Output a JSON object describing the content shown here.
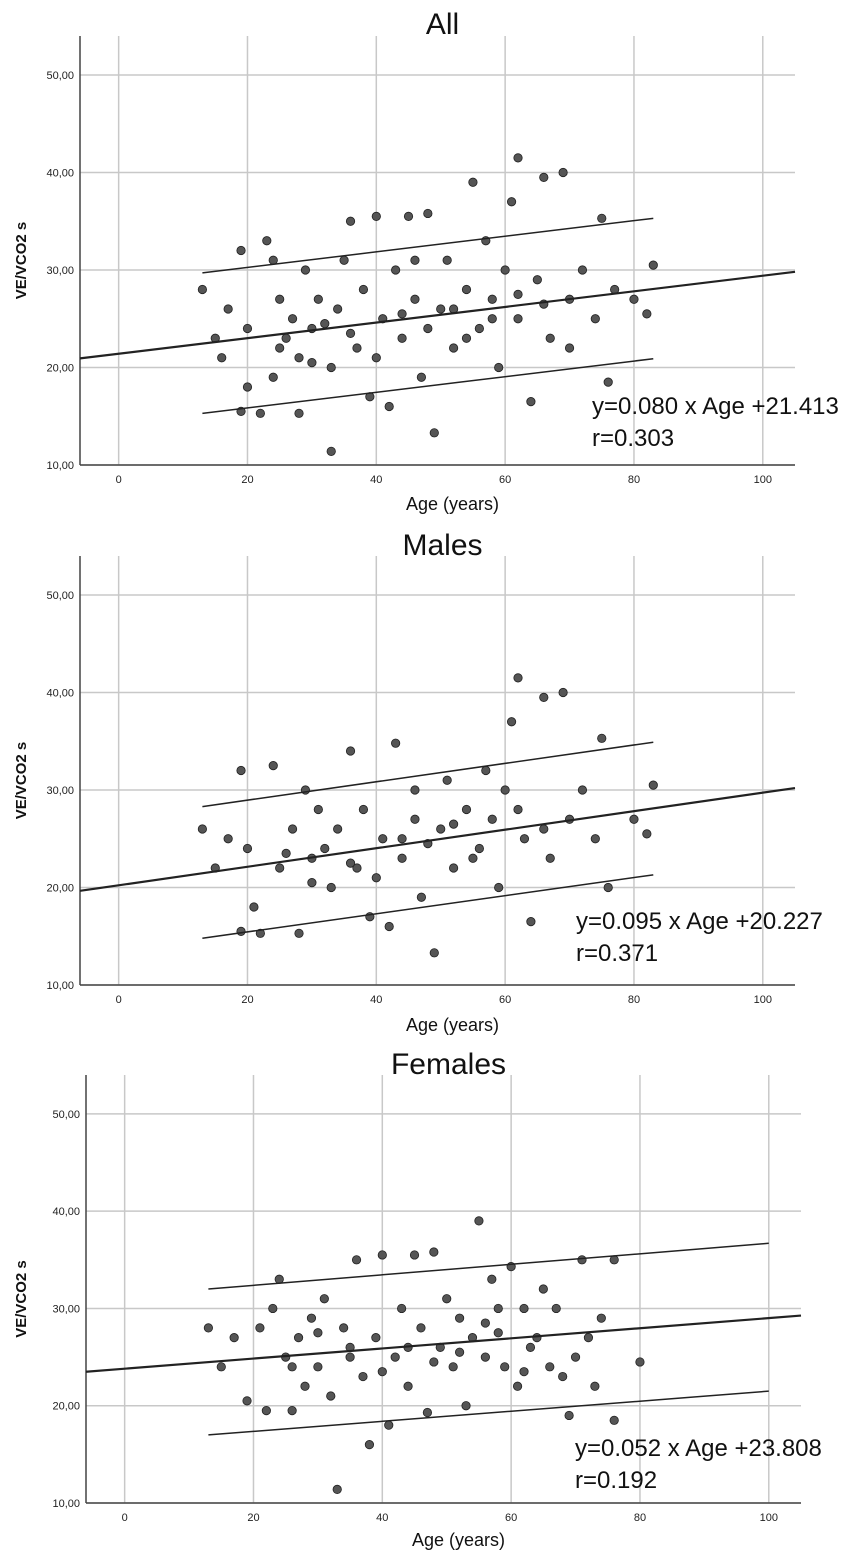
{
  "chart_data": [
    {
      "type": "scatter",
      "title": "All",
      "xlabel": "Age (years)",
      "ylabel": "VE/VCO2 s",
      "xlim": [
        -6,
        105
      ],
      "ylim": [
        10,
        54
      ],
      "xticks": [
        "0",
        "20",
        "40",
        "60",
        "80",
        "100"
      ],
      "yticks": [
        "10,00",
        "20,00",
        "30,00",
        "40,00",
        "50,00"
      ],
      "grid": true,
      "fit": {
        "slope": 0.08,
        "intercept": 21.413,
        "x_range": [
          -6,
          105
        ]
      },
      "prediction_band": {
        "x": [
          13,
          83
        ],
        "upper": [
          29.7,
          35.3
        ],
        "lower": [
          15.3,
          20.9
        ]
      },
      "annotation": [
        "y=0.080 x Age +21.413",
        "r=0.303"
      ],
      "points": [
        [
          13,
          28
        ],
        [
          15,
          23
        ],
        [
          16,
          21
        ],
        [
          17,
          26
        ],
        [
          19,
          32
        ],
        [
          19,
          15.5
        ],
        [
          20,
          24
        ],
        [
          20,
          18
        ],
        [
          22,
          15.3
        ],
        [
          23,
          33
        ],
        [
          24,
          31
        ],
        [
          25,
          22
        ],
        [
          25,
          27
        ],
        [
          27,
          25
        ],
        [
          28,
          15.3
        ],
        [
          28,
          21
        ],
        [
          29,
          30
        ],
        [
          30,
          24
        ],
        [
          31,
          27
        ],
        [
          33,
          11.4
        ],
        [
          33,
          20
        ],
        [
          34,
          26
        ],
        [
          35,
          31
        ],
        [
          36,
          35
        ],
        [
          37,
          22
        ],
        [
          38,
          28
        ],
        [
          39,
          17
        ],
        [
          40,
          35.5
        ],
        [
          41,
          25
        ],
        [
          42,
          16
        ],
        [
          43,
          30
        ],
        [
          44,
          23
        ],
        [
          45,
          35.5
        ],
        [
          46,
          27
        ],
        [
          47,
          19
        ],
        [
          48,
          35.8
        ],
        [
          49,
          13.3
        ],
        [
          50,
          26
        ],
        [
          51,
          31
        ],
        [
          52,
          22
        ],
        [
          54,
          28
        ],
        [
          55,
          39
        ],
        [
          56,
          24
        ],
        [
          57,
          33
        ],
        [
          58,
          27
        ],
        [
          59,
          20
        ],
        [
          60,
          30
        ],
        [
          61,
          37
        ],
        [
          62,
          41.5
        ],
        [
          62,
          25
        ],
        [
          64,
          16.5
        ],
        [
          65,
          29
        ],
        [
          66,
          39.5
        ],
        [
          67,
          23
        ],
        [
          69,
          40
        ],
        [
          70,
          27
        ],
        [
          72,
          30
        ],
        [
          74,
          25
        ],
        [
          75,
          35.3
        ],
        [
          76,
          18.5
        ],
        [
          77,
          28
        ],
        [
          80,
          27
        ],
        [
          82,
          25.5
        ],
        [
          83,
          30.5
        ],
        [
          26,
          23
        ],
        [
          32,
          24.5
        ],
        [
          44,
          25.5
        ],
        [
          52,
          26
        ],
        [
          58,
          25
        ],
        [
          36,
          23.5
        ],
        [
          48,
          24
        ],
        [
          40,
          21
        ],
        [
          54,
          23
        ],
        [
          62,
          27.5
        ],
        [
          30,
          20.5
        ],
        [
          66,
          26.5
        ],
        [
          46,
          31
        ],
        [
          24,
          19
        ],
        [
          70,
          22
        ]
      ]
    },
    {
      "type": "scatter",
      "title": "Males",
      "xlabel": "Age (years)",
      "ylabel": "VE/VCO2 s",
      "xlim": [
        -6,
        105
      ],
      "ylim": [
        10,
        54
      ],
      "xticks": [
        "0",
        "20",
        "40",
        "60",
        "80",
        "100"
      ],
      "yticks": [
        "10,00",
        "20,00",
        "30,00",
        "40,00",
        "50,00"
      ],
      "grid": true,
      "fit": {
        "slope": 0.095,
        "intercept": 20.227,
        "x_range": [
          -6,
          105
        ]
      },
      "prediction_band": {
        "x": [
          13,
          83
        ],
        "upper": [
          28.3,
          34.9
        ],
        "lower": [
          14.8,
          21.3
        ]
      },
      "annotation": [
        "y=0.095 x Age +20.227",
        "r=0.371"
      ],
      "points": [
        [
          13,
          26
        ],
        [
          15,
          22
        ],
        [
          17,
          25
        ],
        [
          19,
          32
        ],
        [
          19,
          15.5
        ],
        [
          20,
          24
        ],
        [
          21,
          18
        ],
        [
          22,
          15.3
        ],
        [
          24,
          32.5
        ],
        [
          25,
          22
        ],
        [
          27,
          26
        ],
        [
          28,
          15.3
        ],
        [
          29,
          30
        ],
        [
          30,
          23
        ],
        [
          31,
          28
        ],
        [
          33,
          20
        ],
        [
          34,
          26
        ],
        [
          36,
          34
        ],
        [
          37,
          22
        ],
        [
          38,
          28
        ],
        [
          39,
          17
        ],
        [
          41,
          25
        ],
        [
          42,
          16
        ],
        [
          43,
          34.8
        ],
        [
          44,
          23
        ],
        [
          46,
          27
        ],
        [
          47,
          19
        ],
        [
          49,
          13.3
        ],
        [
          50,
          26
        ],
        [
          51,
          31
        ],
        [
          52,
          22
        ],
        [
          54,
          28
        ],
        [
          56,
          24
        ],
        [
          57,
          32
        ],
        [
          58,
          27
        ],
        [
          59,
          20
        ],
        [
          60,
          30
        ],
        [
          61,
          37
        ],
        [
          62,
          41.5
        ],
        [
          63,
          25
        ],
        [
          64,
          16.5
        ],
        [
          66,
          39.5
        ],
        [
          67,
          23
        ],
        [
          69,
          40
        ],
        [
          70,
          27
        ],
        [
          72,
          30
        ],
        [
          74,
          25
        ],
        [
          75,
          35.3
        ],
        [
          76,
          20
        ],
        [
          80,
          27
        ],
        [
          82,
          25.5
        ],
        [
          83,
          30.5
        ],
        [
          26,
          23.5
        ],
        [
          32,
          24
        ],
        [
          44,
          25
        ],
        [
          52,
          26.5
        ],
        [
          36,
          22.5
        ],
        [
          48,
          24.5
        ],
        [
          40,
          21
        ],
        [
          55,
          23
        ],
        [
          62,
          28
        ],
        [
          30,
          20.5
        ],
        [
          66,
          26
        ],
        [
          46,
          30
        ]
      ]
    },
    {
      "type": "scatter",
      "title": "Females",
      "xlabel": "Age (years)",
      "ylabel": "VE/VCO2 s",
      "xlim": [
        -6,
        105
      ],
      "ylim": [
        10,
        54
      ],
      "xticks": [
        "0",
        "20",
        "40",
        "60",
        "80",
        "100"
      ],
      "yticks": [
        "10,00",
        "20,00",
        "30,00",
        "40,00",
        "50,00"
      ],
      "grid": true,
      "fit": {
        "slope": 0.052,
        "intercept": 23.808,
        "x_range": [
          -6,
          105
        ]
      },
      "prediction_band": {
        "x": [
          13,
          100
        ],
        "upper": [
          32.0,
          36.7
        ],
        "lower": [
          17.0,
          21.5
        ]
      },
      "annotation": [
        "y=0.052 x Age +23.808",
        "r=0.192"
      ],
      "points": [
        [
          13,
          28
        ],
        [
          15,
          24
        ],
        [
          17,
          27
        ],
        [
          19,
          20.5
        ],
        [
          21,
          28
        ],
        [
          22,
          19.5
        ],
        [
          23,
          30
        ],
        [
          24,
          33
        ],
        [
          25,
          25
        ],
        [
          26,
          19.5
        ],
        [
          27,
          27
        ],
        [
          28,
          22
        ],
        [
          29,
          29
        ],
        [
          30,
          24
        ],
        [
          31,
          31
        ],
        [
          32,
          21
        ],
        [
          33,
          11.4
        ],
        [
          34,
          28
        ],
        [
          35,
          26
        ],
        [
          36,
          35
        ],
        [
          37,
          23
        ],
        [
          38,
          16
        ],
        [
          39,
          27
        ],
        [
          40,
          35.5
        ],
        [
          41,
          18
        ],
        [
          42,
          25
        ],
        [
          43,
          30
        ],
        [
          44,
          22
        ],
        [
          45,
          35.5
        ],
        [
          46,
          28
        ],
        [
          47,
          19.3
        ],
        [
          48,
          35.8
        ],
        [
          49,
          26
        ],
        [
          50,
          31
        ],
        [
          51,
          24
        ],
        [
          52,
          29
        ],
        [
          53,
          20
        ],
        [
          54,
          27
        ],
        [
          55,
          39
        ],
        [
          56,
          25
        ],
        [
          57,
          33
        ],
        [
          58,
          30
        ],
        [
          59,
          24
        ],
        [
          60,
          34.3
        ],
        [
          61,
          22
        ],
        [
          62,
          30
        ],
        [
          63,
          26
        ],
        [
          64,
          27
        ],
        [
          65,
          32
        ],
        [
          66,
          24
        ],
        [
          67,
          30
        ],
        [
          68,
          23
        ],
        [
          69,
          19
        ],
        [
          70,
          25
        ],
        [
          71,
          35
        ],
        [
          72,
          27
        ],
        [
          73,
          22
        ],
        [
          74,
          29
        ],
        [
          76,
          35
        ],
        [
          76,
          18.5
        ],
        [
          80,
          24.5
        ],
        [
          26,
          24
        ],
        [
          35,
          25
        ],
        [
          44,
          26
        ],
        [
          52,
          25.5
        ],
        [
          58,
          27.5
        ],
        [
          30,
          27.5
        ],
        [
          40,
          23.5
        ],
        [
          48,
          24.5
        ],
        [
          56,
          28.5
        ],
        [
          62,
          23.5
        ]
      ]
    }
  ]
}
